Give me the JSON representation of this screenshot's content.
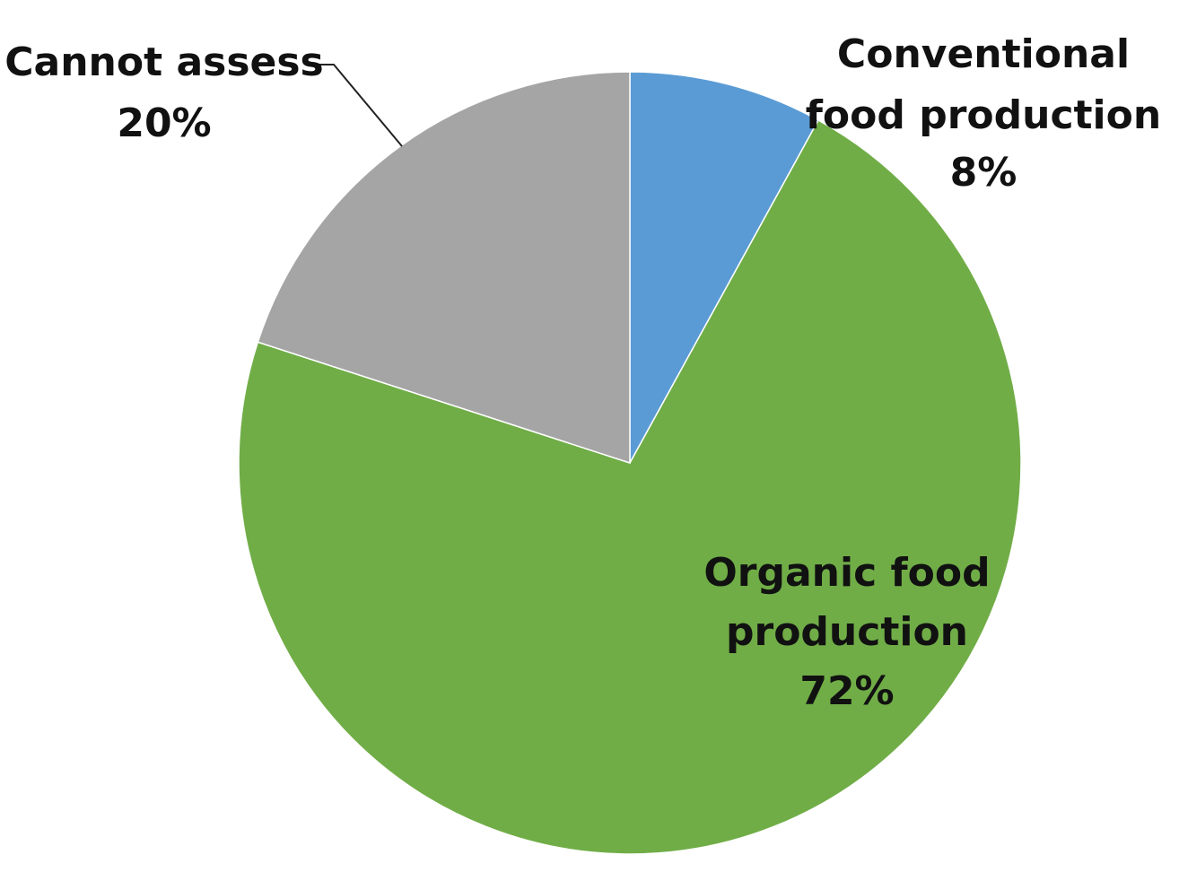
{
  "chart_data": {
    "type": "pie",
    "title": "",
    "start_angle_deg": 0,
    "direction": "clockwise",
    "legend": "none",
    "slices": [
      {
        "label_lines": [
          "Conventional",
          "food production"
        ],
        "value_label": "8%",
        "value": 8,
        "color": "#5b9bd5"
      },
      {
        "label_lines": [
          "Organic food",
          "production"
        ],
        "value_label": "72%",
        "value": 72,
        "color": "#70ad47"
      },
      {
        "label_lines": [
          "Cannot assess"
        ],
        "value_label": "20%",
        "value": 20,
        "color": "#a5a5a5"
      }
    ]
  }
}
